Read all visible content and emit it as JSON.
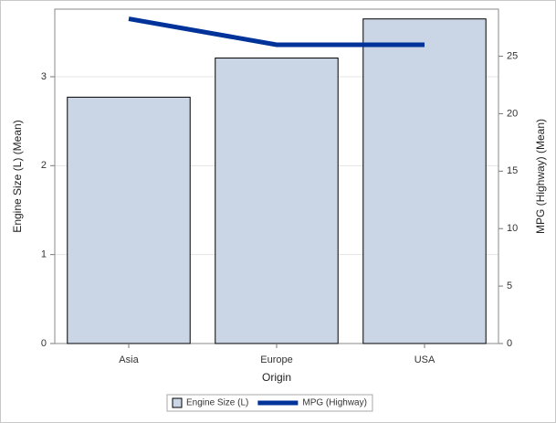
{
  "chart_data": {
    "type": "combo",
    "x_label": "Origin",
    "y_label": "Engine Size (L) (Mean)",
    "y2_label": "MPG (Highway) (Mean)",
    "categories": [
      "Asia",
      "Europe",
      "USA"
    ],
    "series": [
      {
        "name": "Engine Size (L)",
        "type": "bar",
        "color": "#cad5e5",
        "values": [
          2.77,
          3.21,
          3.65
        ]
      },
      {
        "name": "MPG (Highway)",
        "type": "line",
        "axis": "y2",
        "color": "#003399",
        "values": [
          28.26,
          26.0,
          26.0
        ]
      }
    ],
    "ylim": [
      0,
      3.76
    ],
    "yticks": [
      0,
      1,
      2,
      3
    ],
    "y2lim": [
      0,
      29.1
    ],
    "y2ticks": [
      0,
      5,
      10,
      15,
      20,
      25
    ],
    "grid": true,
    "legend": "bottom"
  }
}
